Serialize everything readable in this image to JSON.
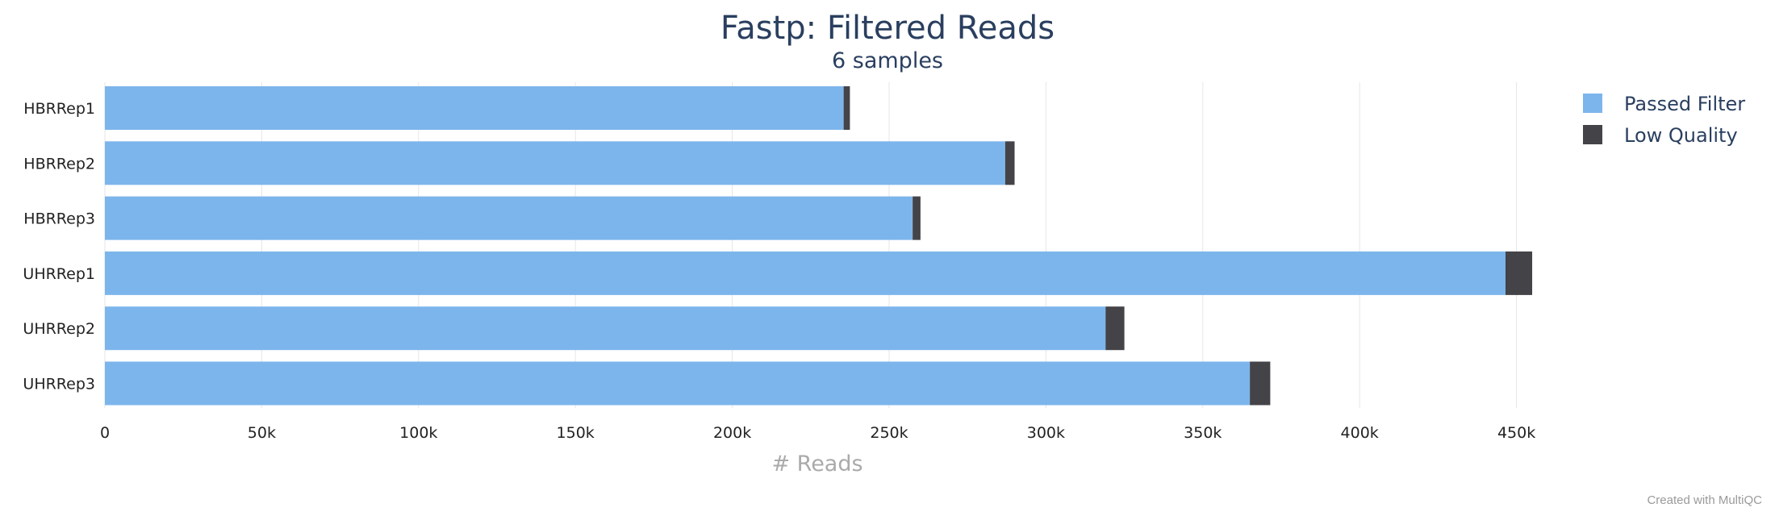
{
  "chart_data": {
    "type": "bar",
    "orientation": "horizontal",
    "stacked": true,
    "title": "Fastp: Filtered Reads",
    "subtitle": "6 samples",
    "xlabel": "# Reads",
    "ylabel": "",
    "xlim": [
      0,
      460000
    ],
    "x_ticks": [
      0,
      50000,
      100000,
      150000,
      200000,
      250000,
      300000,
      350000,
      400000,
      450000
    ],
    "x_tick_labels": [
      "0",
      "50k",
      "100k",
      "150k",
      "200k",
      "250k",
      "300k",
      "350k",
      "400k",
      "450k"
    ],
    "categories": [
      "HBRRep1",
      "HBRRep2",
      "HBRRep3",
      "UHRRep1",
      "UHRRep2",
      "UHRRep3"
    ],
    "series": [
      {
        "name": "Passed Filter",
        "color": "#7cb5ec",
        "values": [
          235500,
          287000,
          257500,
          446500,
          319000,
          365000
        ]
      },
      {
        "name": "Low Quality",
        "color": "#434348",
        "values": [
          2000,
          3000,
          2500,
          8500,
          6000,
          6500
        ]
      }
    ],
    "grid": true,
    "legend_position": "top-right"
  },
  "credit": "Created with MultiQC"
}
